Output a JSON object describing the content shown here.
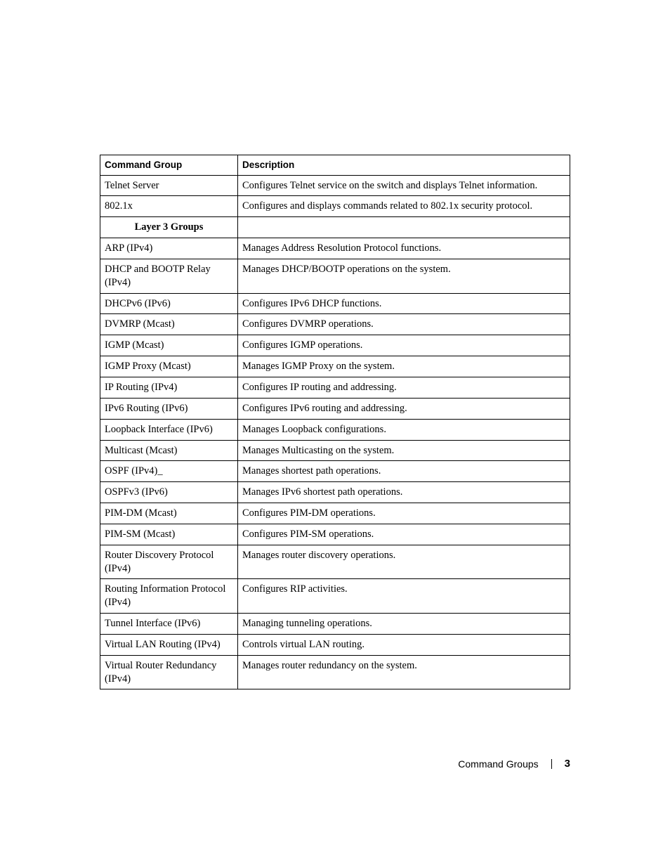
{
  "table": {
    "headers": {
      "group": "Command Group",
      "desc": "Description"
    },
    "section_label": "Layer 3 Groups",
    "rows": [
      {
        "group": "Telnet Server",
        "desc": "Configures Telnet service on the switch and displays Telnet information."
      },
      {
        "group": "802.1x",
        "desc": "Configures and displays commands related to 802.1x security protocol."
      },
      {
        "section": true
      },
      {
        "group": "ARP (IPv4)",
        "desc": "Manages Address Resolution Protocol functions."
      },
      {
        "group": "DHCP and BOOTP Relay (IPv4)",
        "desc": "Manages DHCP/BOOTP operations on the system."
      },
      {
        "group": "DHCPv6 (IPv6)",
        "desc": "Configures IPv6 DHCP functions."
      },
      {
        "group": "DVMRP (Mcast)",
        "desc": "Configures DVMRP operations."
      },
      {
        "group": "IGMP (Mcast)",
        "desc": "Configures IGMP operations."
      },
      {
        "group": "IGMP Proxy (Mcast)",
        "desc": "Manages IGMP Proxy on the system."
      },
      {
        "group": "IP Routing (IPv4)",
        "desc": "Configures IP routing and addressing."
      },
      {
        "group": "IPv6 Routing (IPv6)",
        "desc": "Configures IPv6 routing and addressing."
      },
      {
        "group": "Loopback Interface (IPv6)",
        "desc": "Manages Loopback configurations."
      },
      {
        "group": "Multicast (Mcast)",
        "desc": "Manages Multicasting on the system."
      },
      {
        "group": "OSPF (IPv4)_",
        "desc": "Manages shortest path operations."
      },
      {
        "group": "OSPFv3 (IPv6)",
        "desc": "Manages IPv6 shortest path operations."
      },
      {
        "group": "PIM-DM (Mcast)",
        "desc": "Configures PIM-DM operations."
      },
      {
        "group": "PIM-SM (Mcast)",
        "desc": "Configures PIM-SM operations."
      },
      {
        "group": "Router Discovery Protocol (IPv4)",
        "desc": "Manages router discovery operations."
      },
      {
        "group": "Routing Information Protocol (IPv4)",
        "desc": "Configures RIP activities."
      },
      {
        "group": "Tunnel Interface (IPv6)",
        "desc": "Managing tunneling operations."
      },
      {
        "group": "Virtual LAN Routing (IPv4)",
        "desc": "Controls virtual LAN routing."
      },
      {
        "group": "Virtual Router Redundancy (IPv4)",
        "desc": "Manages router redundancy on the system."
      }
    ]
  },
  "footer": {
    "section": "Command Groups",
    "page": "3"
  }
}
